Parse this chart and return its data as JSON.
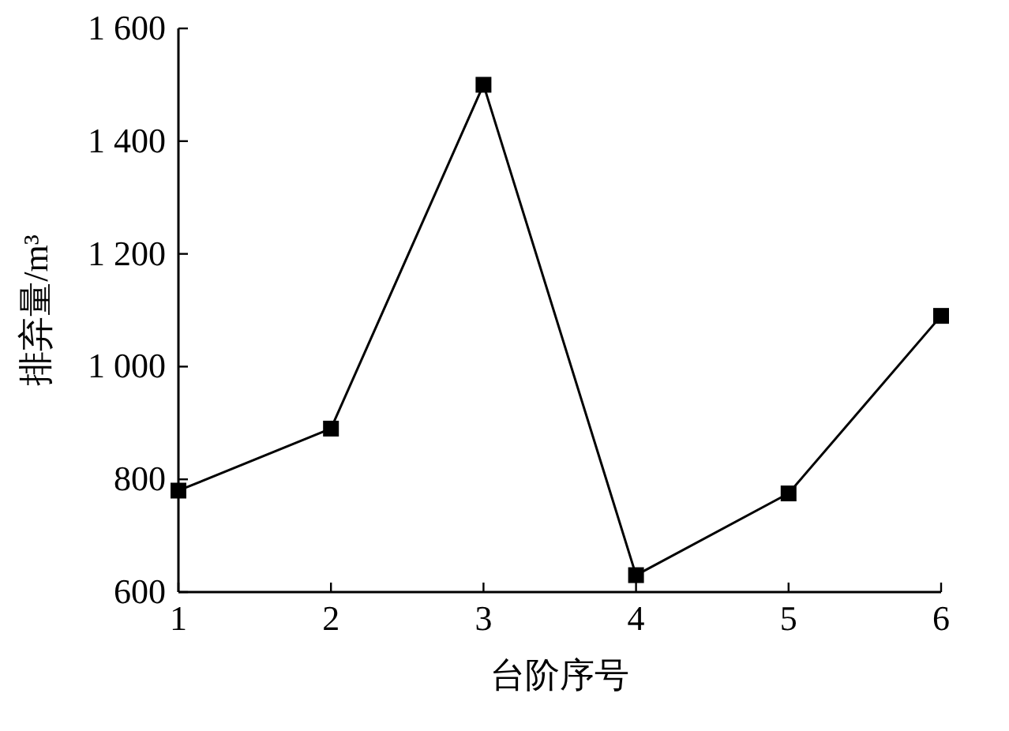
{
  "chart_data": {
    "type": "line",
    "xlabel": "台阶序号",
    "ylabel": "排弃量/m³",
    "x": [
      1,
      2,
      3,
      4,
      5,
      6
    ],
    "series": [
      {
        "color": "#000000",
        "values": [
          780,
          890,
          1500,
          630,
          775,
          1090
        ]
      }
    ],
    "xlim": [
      1,
      6
    ],
    "xticks": [
      1,
      2,
      3,
      4,
      5,
      6
    ],
    "ylim": [
      600,
      1600
    ],
    "yticks": [
      600,
      800,
      {
        "value": 1000,
        "label": "1 000"
      },
      {
        "value": 1200,
        "label": "1 200"
      },
      {
        "value": 1400,
        "label": "1 400"
      },
      {
        "value": 1600,
        "label": "1 600"
      }
    ],
    "marker": "square",
    "line_style": "solid",
    "grid": false
  }
}
